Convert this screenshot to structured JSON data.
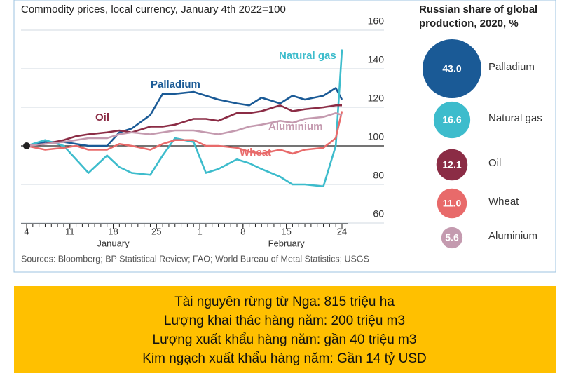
{
  "chart_data": [
    {
      "type": "line",
      "title": "Commodity prices, local currency, January 4th 2022=100",
      "x": [
        0,
        3,
        6,
        8,
        10,
        13,
        15,
        17,
        20,
        22,
        24,
        27,
        29,
        31,
        34,
        36,
        38,
        41,
        43,
        45,
        48,
        50,
        51
      ],
      "xlim": [
        0,
        51
      ],
      "xticks": [
        {
          "value": 0,
          "label": "4"
        },
        {
          "value": 7,
          "label": "11"
        },
        {
          "value": 14,
          "label": "18"
        },
        {
          "value": 21,
          "label": "25"
        },
        {
          "value": 28,
          "label": "1"
        },
        {
          "value": 35,
          "label": "8"
        },
        {
          "value": 42,
          "label": "15"
        },
        {
          "value": 51,
          "label": "24"
        }
      ],
      "x_groups": [
        {
          "label": "January",
          "value": 14
        },
        {
          "label": "February",
          "value": 42
        }
      ],
      "ylim": [
        60,
        160
      ],
      "yticks": [
        60,
        80,
        100,
        120,
        140,
        160
      ],
      "grid": true,
      "series": [
        {
          "name": "Palladium",
          "color": "#1a5a96",
          "values": [
            100,
            102,
            102,
            101,
            100,
            100,
            107,
            109,
            116,
            127,
            127,
            128,
            126,
            124,
            122,
            121,
            125,
            122,
            126,
            124,
            126,
            130,
            124
          ]
        },
        {
          "name": "Natural gas",
          "color": "#3dbccc",
          "values": [
            100,
            103,
            100,
            93,
            86,
            95,
            89,
            86,
            85,
            95,
            104,
            102,
            86,
            88,
            93,
            91,
            88,
            84,
            80,
            80,
            79,
            100,
            150
          ]
        },
        {
          "name": "Oil",
          "color": "#8b2c45",
          "values": [
            100,
            101,
            103,
            105,
            106,
            107,
            108,
            107,
            110,
            110,
            111,
            114,
            114,
            113,
            117,
            117,
            118,
            121,
            118,
            119,
            120,
            121,
            121
          ]
        },
        {
          "name": "Wheat",
          "color": "#e86a6a",
          "values": [
            100,
            98,
            99,
            100,
            98,
            98,
            101,
            100,
            98,
            101,
            103,
            103,
            100,
            100,
            99,
            97,
            96,
            98,
            96,
            98,
            99,
            104,
            118
          ]
        },
        {
          "name": "Aluminium",
          "color": "#c49aaf",
          "values": [
            100,
            101,
            102,
            103,
            104,
            104,
            106,
            107,
            106,
            107,
            108,
            108,
            107,
            106,
            108,
            110,
            111,
            113,
            112,
            114,
            115,
            117,
            116
          ]
        }
      ],
      "sources": "Sources: Bloomberg; BP Statistical Review; FAO; World Bureau of Metal Statistics; USGS"
    },
    {
      "type": "bubble",
      "title": "Russian share of global production, 2020, %",
      "categories": [
        "Palladium",
        "Natural gas",
        "Oil",
        "Wheat",
        "Aluminium"
      ],
      "values": [
        43.0,
        16.6,
        12.1,
        11.0,
        5.6
      ],
      "value_labels": [
        "43.0",
        "16.6",
        "12.1",
        "11.0",
        "5.6"
      ],
      "colors": [
        "#1a5a96",
        "#3dbccc",
        "#8b2c45",
        "#e86a6a",
        "#c49aaf"
      ]
    }
  ],
  "text_box": {
    "lines": [
      "Tài nguyên rừng từ Nga: 815 triệu ha",
      "Lượng khai thác hàng năm: 200 triệu m3",
      "Lượng xuất khẩu hàng năm: gần 40 triệu m3",
      "Kim ngạch xuất khẩu hàng năm: Gần 14 tỷ USD"
    ]
  }
}
